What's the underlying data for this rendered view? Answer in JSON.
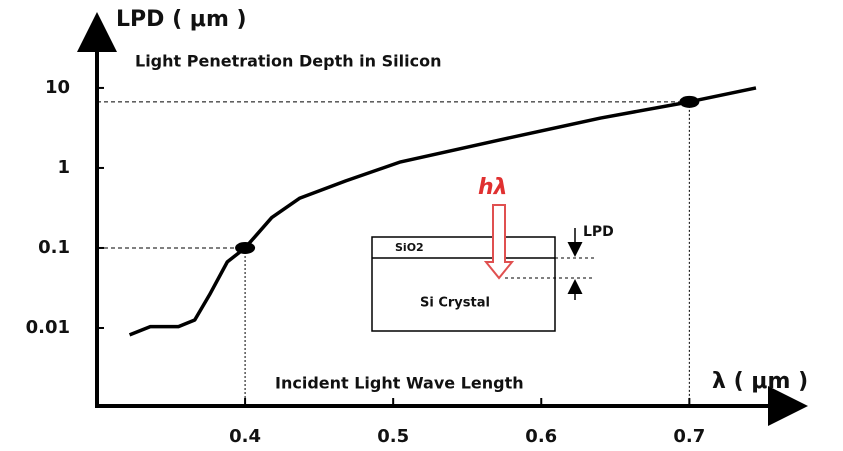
{
  "chart_data": {
    "type": "line",
    "title": "Light Penetration Depth in Silicon",
    "y_label": "LPD ( μm )",
    "x_label": "λ ( μm )",
    "annotation": "Incident Light Wave Length",
    "x": [
      0.322,
      0.336,
      0.355,
      0.366,
      0.376,
      0.388,
      0.4,
      0.418,
      0.437,
      0.468,
      0.505,
      0.572,
      0.64,
      0.7,
      0.745
    ],
    "series": [
      {
        "color": "#000000",
        "values": [
          0.0082,
          0.0104,
          0.0104,
          0.0126,
          0.026,
          0.067,
          0.1,
          0.24,
          0.42,
          0.69,
          1.19,
          2.24,
          4.2,
          6.7,
          10
        ]
      }
    ],
    "highlighted": {
      "x": [
        0.4,
        0.7
      ],
      "y": [
        0.1,
        6.7
      ]
    },
    "xlim": [
      0.3,
      0.77
    ],
    "xticks": [
      0.4,
      0.5,
      0.6,
      0.7
    ],
    "ylim": [
      0.001,
      50
    ],
    "yticks": [
      10,
      1,
      0.1,
      0.01
    ],
    "log_y": true,
    "grid": false,
    "inset": {
      "photon": "hλ",
      "oxide": "SiO2",
      "substrate": "Si Crystal",
      "depth": "LPD"
    }
  }
}
